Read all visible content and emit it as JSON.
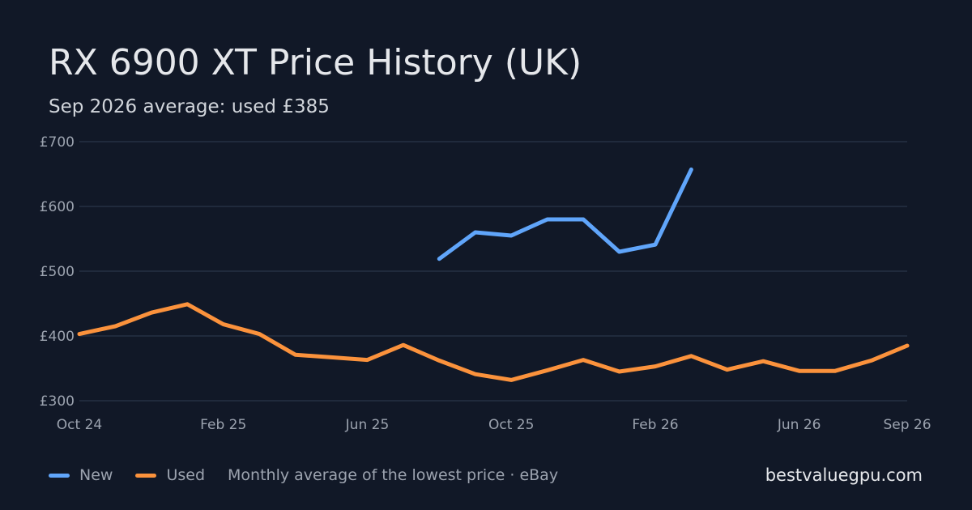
{
  "header": {
    "title": "RX 6900 XT Price History (UK)",
    "subtitle": "Sep 2026 average: used £385"
  },
  "legend": {
    "items": [
      {
        "label": "New",
        "color": "#60a5fa"
      },
      {
        "label": "Used",
        "color": "#fb923c"
      }
    ],
    "note": "Monthly average of the lowest price · eBay"
  },
  "footer": {
    "brand": "bestvaluegpu.com"
  },
  "chart_data": {
    "type": "line",
    "title": "RX 6900 XT Price History (UK)",
    "subtitle": "Sep 2026 average: used £385",
    "xlabel": "",
    "ylabel": "",
    "x": [
      "Oct 24",
      "Nov 24",
      "Dec 24",
      "Jan 25",
      "Feb 25",
      "Mar 25",
      "Apr 25",
      "May 25",
      "Jun 25",
      "Jul 25",
      "Aug 25",
      "Sep 25",
      "Oct 25",
      "Nov 25",
      "Dec 25",
      "Jan 26",
      "Feb 26",
      "Mar 26",
      "Apr 26",
      "May 26",
      "Jun 26",
      "Jul 26",
      "Aug 26",
      "Sep 26"
    ],
    "x_ticks": [
      "Oct 24",
      "Feb 25",
      "Jun 25",
      "Oct 25",
      "Feb 26",
      "Jun 26",
      "Sep 26"
    ],
    "y_ticks": [
      "£300",
      "£400",
      "£500",
      "£600",
      "£700"
    ],
    "ylim": [
      300,
      700
    ],
    "grid": true,
    "legend_position": "bottom-left",
    "series": [
      {
        "name": "New",
        "color": "#60a5fa",
        "values": [
          null,
          null,
          null,
          null,
          null,
          null,
          null,
          null,
          null,
          null,
          519,
          560,
          555,
          580,
          580,
          530,
          541,
          657,
          null,
          null,
          null,
          null,
          null,
          null
        ]
      },
      {
        "name": "Used",
        "color": "#fb923c",
        "values": [
          403,
          415,
          436,
          449,
          418,
          403,
          371,
          367,
          363,
          386,
          362,
          341,
          332,
          347,
          363,
          345,
          353,
          369,
          348,
          361,
          346,
          346,
          362,
          385
        ]
      }
    ]
  }
}
